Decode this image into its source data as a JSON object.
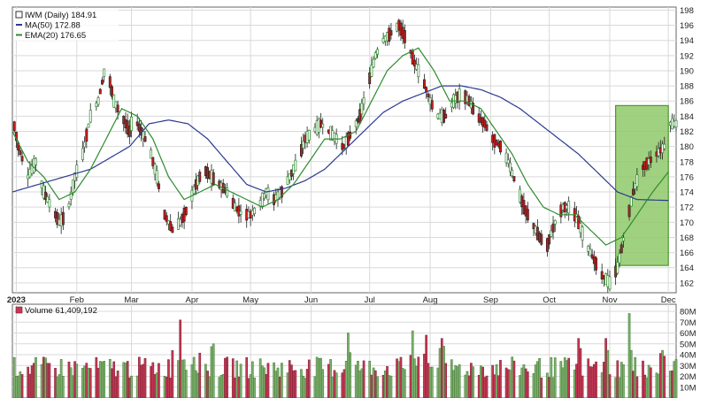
{
  "chart_data": [
    {
      "type": "candlestick",
      "legend": [
        {
          "label": "IWM (Daily) 184.91",
          "color": "#333333",
          "icon": "price-swatch"
        },
        {
          "label": "MA(50) 172.88",
          "color": "#2b3a8f",
          "icon": "line-swatch"
        },
        {
          "label": "EMA(20) 176.65",
          "color": "#2e8b2e",
          "icon": "line-swatch"
        }
      ],
      "ylim": [
        160.7,
        198.4
      ],
      "y_ticks": [
        162,
        164,
        166,
        168,
        170,
        172,
        174,
        176,
        178,
        180,
        182,
        184,
        186,
        188,
        190,
        192,
        194,
        196,
        198
      ],
      "x_ticks": [
        "2023",
        "Feb",
        "Mar",
        "Apr",
        "May",
        "Jun",
        "Jul",
        "Aug",
        "Sep",
        "Oct",
        "Nov",
        "Dec"
      ],
      "x_tick_days": [
        2,
        33,
        61,
        92,
        122,
        153,
        183,
        214,
        245,
        275,
        306,
        336
      ],
      "x_range_days": [
        0,
        340
      ],
      "grid": true,
      "colors": {
        "up": "#2e8b2e",
        "down": "#d11a1a",
        "ma50": "#2b3a8f",
        "ema20": "#2e8b2e",
        "highlight_fill": "#8fc96a",
        "highlight_stroke": "#4a9a2a"
      },
      "highlight_box": {
        "x_start_day": 309,
        "x_end_day": 336,
        "y_low": 164.3,
        "y_high": 185.4
      },
      "price_anchors": [
        [
          0,
          184
        ],
        [
          3,
          180
        ],
        [
          8,
          176
        ],
        [
          12,
          178
        ],
        [
          16,
          174
        ],
        [
          20,
          172
        ],
        [
          24,
          170
        ],
        [
          28,
          171
        ],
        [
          32,
          176
        ],
        [
          36,
          179
        ],
        [
          40,
          184
        ],
        [
          44,
          186
        ],
        [
          48,
          191
        ],
        [
          52,
          186
        ],
        [
          56,
          184
        ],
        [
          60,
          182
        ],
        [
          62,
          184
        ],
        [
          64,
          183
        ],
        [
          66,
          182
        ],
        [
          70,
          180
        ],
        [
          74,
          176
        ],
        [
          78,
          171
        ],
        [
          82,
          169
        ],
        [
          86,
          170
        ],
        [
          90,
          172
        ],
        [
          94,
          175
        ],
        [
          98,
          177
        ],
        [
          102,
          176
        ],
        [
          106,
          175
        ],
        [
          110,
          174
        ],
        [
          114,
          172
        ],
        [
          118,
          171
        ],
        [
          122,
          171
        ],
        [
          126,
          172
        ],
        [
          130,
          174
        ],
        [
          134,
          173
        ],
        [
          138,
          174
        ],
        [
          142,
          176
        ],
        [
          146,
          178
        ],
        [
          150,
          181
        ],
        [
          154,
          182
        ],
        [
          158,
          183
        ],
        [
          162,
          182
        ],
        [
          166,
          181
        ],
        [
          168,
          180
        ],
        [
          170,
          180
        ],
        [
          174,
          182
        ],
        [
          178,
          184
        ],
        [
          182,
          188
        ],
        [
          186,
          192
        ],
        [
          190,
          194
        ],
        [
          194,
          195
        ],
        [
          198,
          196
        ],
        [
          202,
          194
        ],
        [
          206,
          191
        ],
        [
          210,
          189
        ],
        [
          214,
          186
        ],
        [
          218,
          184
        ],
        [
          222,
          184
        ],
        [
          226,
          186
        ],
        [
          230,
          187
        ],
        [
          234,
          186
        ],
        [
          238,
          184
        ],
        [
          242,
          183
        ],
        [
          246,
          181
        ],
        [
          250,
          180
        ],
        [
          254,
          178
        ],
        [
          258,
          175
        ],
        [
          262,
          172
        ],
        [
          266,
          170
        ],
        [
          270,
          168
        ],
        [
          274,
          167
        ],
        [
          278,
          170
        ],
        [
          282,
          172
        ],
        [
          286,
          172
        ],
        [
          290,
          170
        ],
        [
          294,
          167
        ],
        [
          298,
          165
        ],
        [
          302,
          163
        ],
        [
          306,
          162
        ],
        [
          310,
          164
        ],
        [
          314,
          169
        ],
        [
          318,
          174
        ],
        [
          322,
          177
        ],
        [
          326,
          178
        ],
        [
          330,
          179
        ],
        [
          334,
          180
        ],
        [
          336,
          183
        ]
      ],
      "ema20_anchors": [
        [
          0,
          182
        ],
        [
          8,
          178
        ],
        [
          16,
          176
        ],
        [
          24,
          173
        ],
        [
          32,
          174
        ],
        [
          40,
          177
        ],
        [
          48,
          181
        ],
        [
          56,
          185
        ],
        [
          64,
          184
        ],
        [
          72,
          181
        ],
        [
          80,
          176
        ],
        [
          88,
          173
        ],
        [
          96,
          174
        ],
        [
          104,
          175
        ],
        [
          112,
          174
        ],
        [
          120,
          173
        ],
        [
          128,
          172
        ],
        [
          136,
          173
        ],
        [
          144,
          175
        ],
        [
          152,
          178
        ],
        [
          160,
          181
        ],
        [
          168,
          181
        ],
        [
          176,
          182
        ],
        [
          184,
          186
        ],
        [
          192,
          190
        ],
        [
          200,
          192
        ],
        [
          208,
          193
        ],
        [
          216,
          190
        ],
        [
          224,
          186
        ],
        [
          232,
          186
        ],
        [
          240,
          185
        ],
        [
          248,
          182
        ],
        [
          256,
          179
        ],
        [
          264,
          175
        ],
        [
          272,
          172
        ],
        [
          280,
          171
        ],
        [
          288,
          171
        ],
        [
          296,
          169
        ],
        [
          304,
          167
        ],
        [
          312,
          168
        ],
        [
          320,
          171
        ],
        [
          328,
          174
        ],
        [
          336,
          176.65
        ]
      ],
      "ma50_anchors": [
        [
          0,
          174
        ],
        [
          20,
          175.5
        ],
        [
          40,
          177
        ],
        [
          60,
          180
        ],
        [
          70,
          183
        ],
        [
          80,
          183.5
        ],
        [
          90,
          183
        ],
        [
          100,
          181
        ],
        [
          110,
          178
        ],
        [
          120,
          175
        ],
        [
          130,
          174
        ],
        [
          140,
          174.5
        ],
        [
          150,
          175.5
        ],
        [
          160,
          177
        ],
        [
          170,
          179.5
        ],
        [
          180,
          182
        ],
        [
          190,
          184.5
        ],
        [
          200,
          186
        ],
        [
          210,
          187
        ],
        [
          220,
          188
        ],
        [
          230,
          188
        ],
        [
          240,
          187.5
        ],
        [
          250,
          186.5
        ],
        [
          260,
          185
        ],
        [
          270,
          183
        ],
        [
          280,
          181
        ],
        [
          290,
          179
        ],
        [
          300,
          176.5
        ],
        [
          310,
          174
        ],
        [
          320,
          173
        ],
        [
          336,
          172.88
        ]
      ]
    },
    {
      "type": "bar",
      "legend": [
        {
          "label": "Volume 61,409,192",
          "color": "#c23a55",
          "icon": "volume-swatch"
        }
      ],
      "ylim": [
        0,
        80
      ],
      "y_ticks": [
        "10M",
        "20M",
        "30M",
        "40M",
        "50M",
        "60M",
        "70M",
        "80M"
      ],
      "y_tick_values": [
        10,
        20,
        30,
        40,
        50,
        60,
        70,
        80
      ],
      "units": "millions",
      "spike_days": [
        [
          83,
          75
        ],
        [
          86,
          72
        ],
        [
          91,
          62
        ],
        [
          97,
          65
        ],
        [
          103,
          50
        ],
        [
          172,
          60
        ],
        [
          205,
          62
        ],
        [
          212,
          58
        ],
        [
          220,
          55
        ],
        [
          290,
          55
        ],
        [
          304,
          55
        ],
        [
          316,
          78
        ],
        [
          322,
          58
        ],
        [
          333,
          44
        ],
        [
          335,
          61.4
        ]
      ]
    }
  ]
}
